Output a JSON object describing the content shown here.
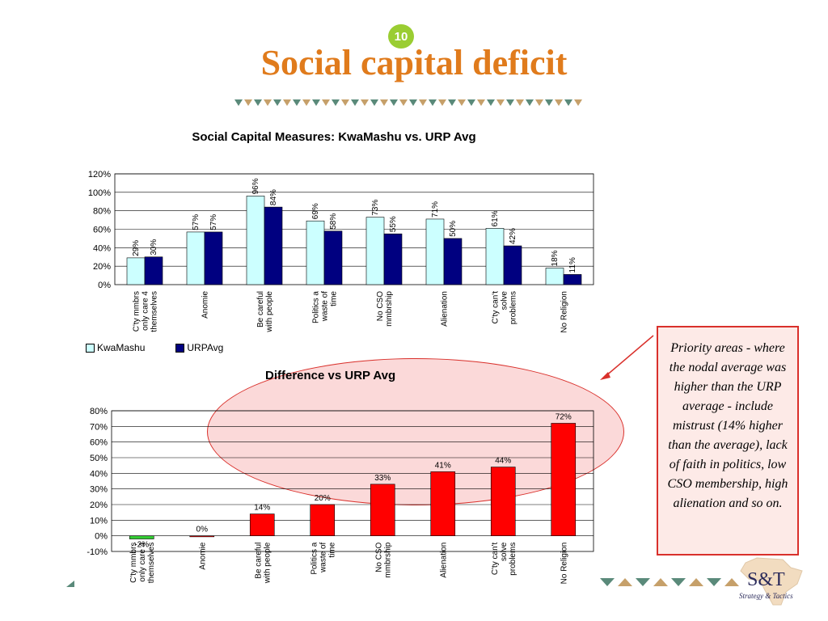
{
  "slide": {
    "number": "10",
    "title": "Social capital deficit",
    "note": "Priority areas - where the nodal average was higher than the URP average - include mistrust (14% higher than the average), lack of faith in politics, low CSO membership, high alienation and so on.",
    "logo_text": "S&T",
    "logo_tagline": "Strategy & Tactics"
  },
  "colors": {
    "kwamashu": "#ccffff",
    "urp": "#000080",
    "difference": "#ff0000",
    "negative": "#33cc33",
    "title": "#e07b1c"
  },
  "chart_data": [
    {
      "type": "bar",
      "title": "Social Capital Measures: KwaMashu  vs. URP Avg",
      "categories": [
        "C'ty mmbrs only care 4 themselves",
        "Anomie",
        "Be careful with people",
        "Politics a waste of time",
        "No CSO mmbrship",
        "Alienation",
        "C'ty can't solve problems",
        "No Religion"
      ],
      "series": [
        {
          "name": "KwaMashu",
          "values": [
            29,
            57,
            96,
            69,
            73,
            71,
            61,
            18
          ]
        },
        {
          "name": "URPAvg",
          "values": [
            30,
            57,
            84,
            58,
            55,
            50,
            42,
            11
          ]
        }
      ],
      "value_labels": [
        [
          "29%",
          "57%",
          "96%",
          "69%",
          "73%",
          "71%",
          "61%",
          "18%"
        ],
        [
          "30%",
          "57%",
          "84%",
          "58%",
          "55%",
          "50%",
          "42%",
          "11%"
        ]
      ],
      "yticks": [
        "0%",
        "20%",
        "40%",
        "60%",
        "80%",
        "100%",
        "120%"
      ],
      "ylim": [
        0,
        120
      ],
      "legend": "bottom-left",
      "grid": true
    },
    {
      "type": "bar",
      "title": "Difference vs URP Avg",
      "categories": [
        "C'ty mmbrs only care 4 themselves",
        "Anomie",
        "Be careful with people",
        "Politics a waste of time",
        "No CSO mmbrship",
        "Alienation",
        "C'ty can't solve problems",
        "No Religion"
      ],
      "values": [
        -2,
        0,
        14,
        20,
        33,
        41,
        44,
        72
      ],
      "value_labels": [
        "-2%",
        "0%",
        "14%",
        "20%",
        "33%",
        "41%",
        "44%",
        "72%"
      ],
      "yticks": [
        "-10%",
        "0%",
        "10%",
        "20%",
        "30%",
        "40%",
        "50%",
        "60%",
        "70%",
        "80%"
      ],
      "ylim": [
        -10,
        80
      ],
      "grid": true
    }
  ]
}
